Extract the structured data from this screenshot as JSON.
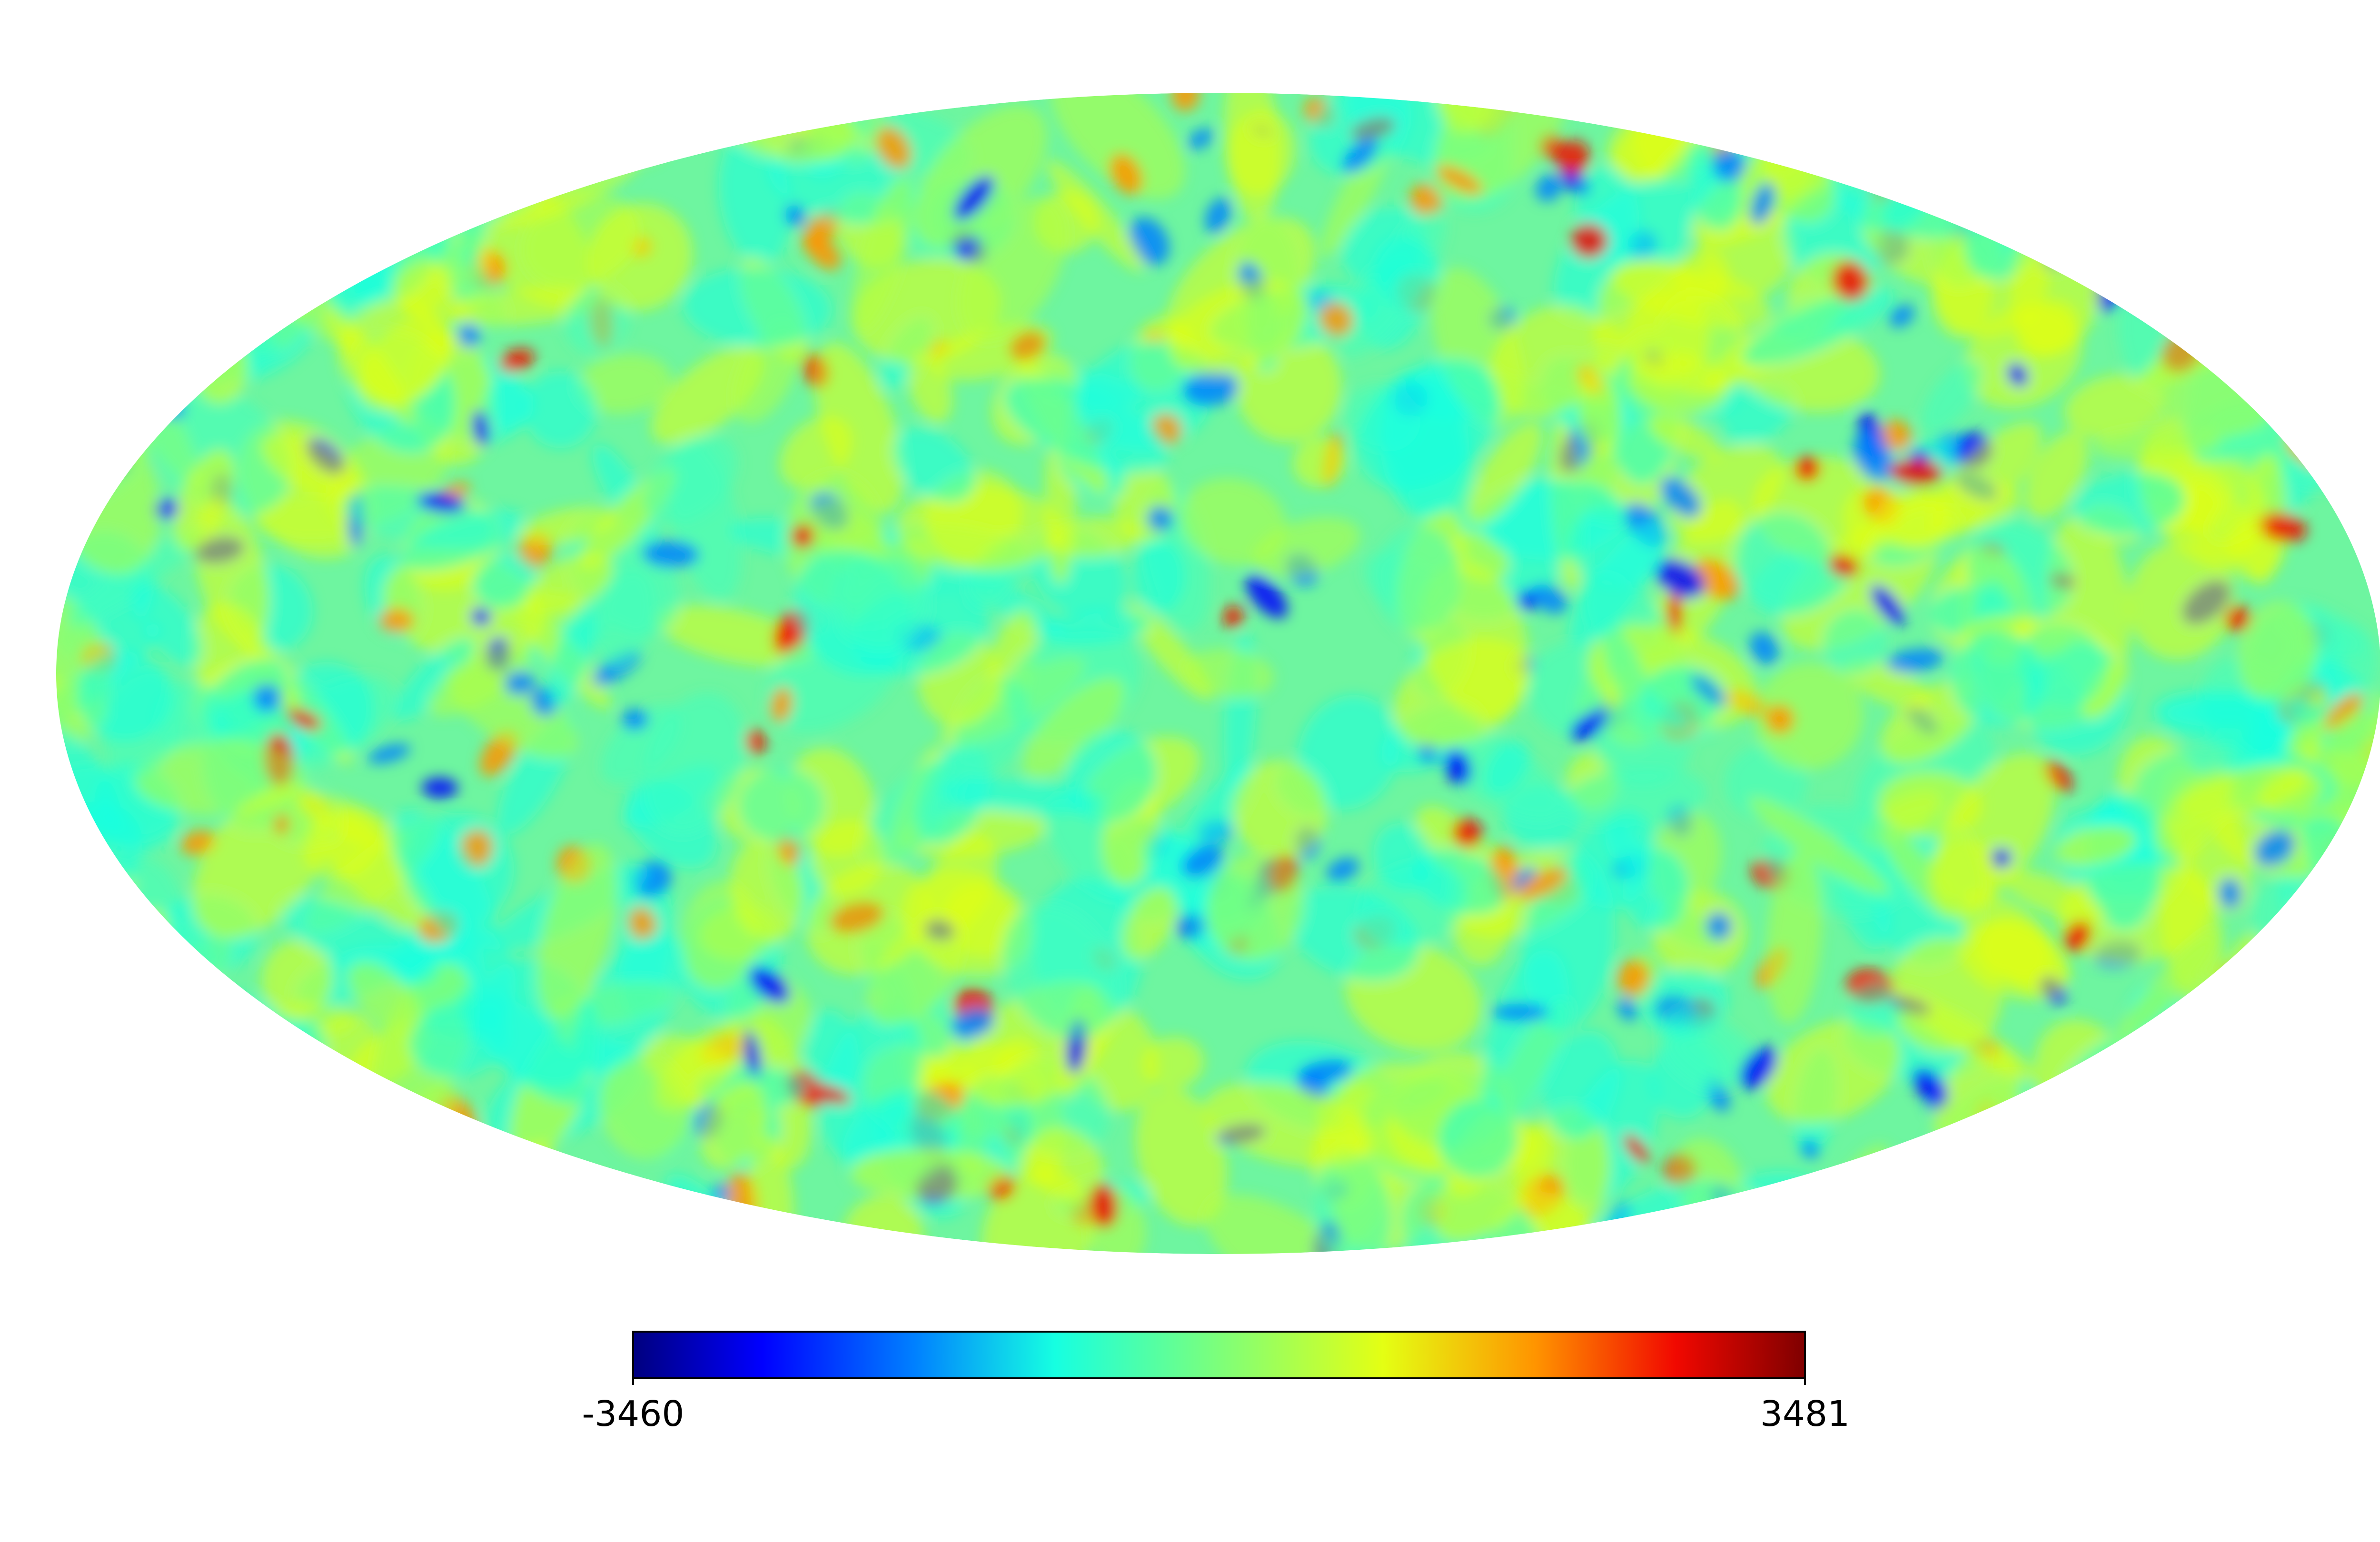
{
  "colorbar": {
    "lim": [
      -3460,
      3481
    ],
    "ticks": [
      -3460,
      3481
    ]
  }
}
